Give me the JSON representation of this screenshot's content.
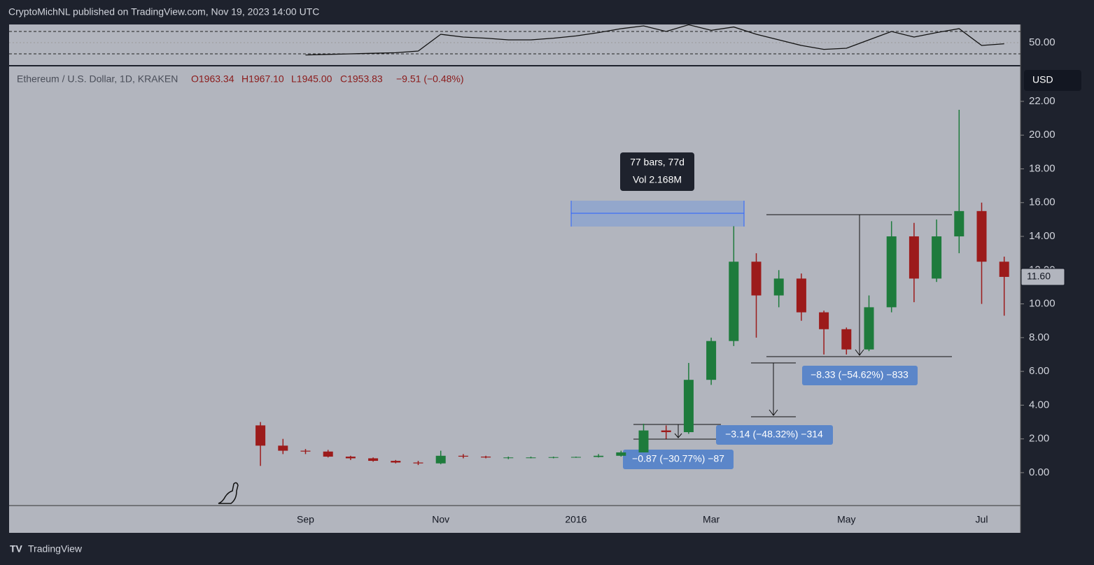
{
  "header": {
    "publisher": "CryptoMichNL published on TradingView.com, Nov 19, 2023 14:00 UTC"
  },
  "legend": {
    "symbol": "Ethereum / U.S. Dollar, 1D, KRAKEN",
    "open": "O1963.34",
    "high": "H1967.10",
    "low": "L1945.00",
    "close": "C1953.83",
    "change": "−9.51 (−0.48%)"
  },
  "currency": "USD",
  "last_price": {
    "value": 11.6,
    "label": "11.60"
  },
  "annotations": {
    "range_bars": "77 bars, 77d",
    "range_volume": "Vol 2.168M",
    "measure_1": "−8.33 (−54.62%) −833",
    "measure_2": "−3.14 (−48.32%) −314",
    "measure_3": "−0.87 (−30.77%) −87"
  },
  "footer": "TradingView",
  "chart_data": [
    {
      "type": "candlestick",
      "categories": [
        null,
        null,
        "Sep",
        null,
        null,
        null,
        null,
        null,
        "Nov",
        null,
        null,
        null,
        null,
        null,
        "2016",
        null,
        null,
        null,
        null,
        null,
        "Mar",
        null,
        null,
        null,
        null,
        null,
        "May",
        null,
        null,
        null,
        null,
        null,
        "Jul",
        null
      ],
      "open": [
        2.8,
        1.6,
        1.3,
        1.25,
        0.95,
        0.85,
        0.7,
        0.6,
        0.55,
        1.0,
        0.95,
        0.9,
        0.9,
        0.9,
        0.92,
        0.93,
        1.0,
        1.2,
        2.5,
        2.4,
        5.5,
        7.8,
        12.5,
        10.5,
        11.5,
        9.5,
        8.5,
        7.3,
        9.8,
        14.0,
        11.5,
        14.0,
        15.5,
        12.5
      ],
      "high": [
        3.0,
        2.0,
        1.4,
        1.35,
        1.0,
        0.9,
        0.75,
        0.7,
        1.3,
        1.1,
        1.0,
        0.95,
        0.95,
        0.95,
        0.95,
        1.1,
        1.3,
        2.9,
        2.8,
        6.5,
        8.0,
        14.6,
        13.0,
        12.0,
        11.8,
        9.6,
        8.6,
        10.5,
        14.9,
        14.8,
        15.0,
        21.5,
        16.0,
        12.8
      ],
      "low": [
        0.4,
        1.1,
        1.1,
        0.9,
        0.75,
        0.65,
        0.55,
        0.45,
        0.5,
        0.85,
        0.85,
        0.8,
        0.85,
        0.85,
        0.88,
        0.9,
        0.95,
        1.2,
        2.0,
        2.3,
        5.2,
        7.5,
        8.0,
        9.8,
        9.0,
        7.0,
        7.0,
        7.2,
        9.5,
        10.1,
        11.3,
        13.0,
        10.0,
        9.3
      ],
      "close": [
        1.6,
        1.3,
        1.25,
        0.95,
        0.85,
        0.7,
        0.6,
        0.55,
        1.0,
        0.95,
        0.9,
        0.9,
        0.9,
        0.92,
        0.93,
        1.0,
        1.2,
        2.5,
        2.4,
        5.5,
        7.8,
        12.5,
        10.5,
        11.5,
        9.5,
        8.5,
        7.3,
        9.8,
        14.0,
        11.5,
        14.0,
        15.5,
        12.5,
        11.6
      ],
      "up_color": "#1e7b3c",
      "down_color": "#9c1b1b",
      "ylim": [
        -1.95,
        24.07
      ],
      "yticks": [
        {
          "value": 0,
          "label": "0.00"
        },
        {
          "value": 2,
          "label": "2.00"
        },
        {
          "value": 4,
          "label": "4.00"
        },
        {
          "value": 6,
          "label": "6.00"
        },
        {
          "value": 8,
          "label": "8.00"
        },
        {
          "value": 10,
          "label": "10.00"
        },
        {
          "value": 12,
          "label": "12.00"
        },
        {
          "value": 14,
          "label": "14.00"
        },
        {
          "value": 16,
          "label": "16.00"
        },
        {
          "value": 18,
          "label": "18.00"
        },
        {
          "value": 20,
          "label": "20.00"
        },
        {
          "value": 22,
          "label": "22.00"
        }
      ]
    },
    {
      "type": "line",
      "values": [
        null,
        null,
        28,
        29,
        30,
        31,
        32,
        35,
        65,
        60,
        58,
        55,
        55,
        58,
        62,
        68,
        75,
        80,
        70,
        82,
        72,
        78,
        65,
        55,
        45,
        38,
        40,
        55,
        70,
        60,
        68,
        75,
        45,
        48
      ],
      "color": "#111111",
      "bands": [
        30,
        70
      ],
      "ylim": [
        10,
        82.5
      ],
      "yticks": [
        {
          "value": 50,
          "label": "50.00"
        }
      ]
    }
  ]
}
